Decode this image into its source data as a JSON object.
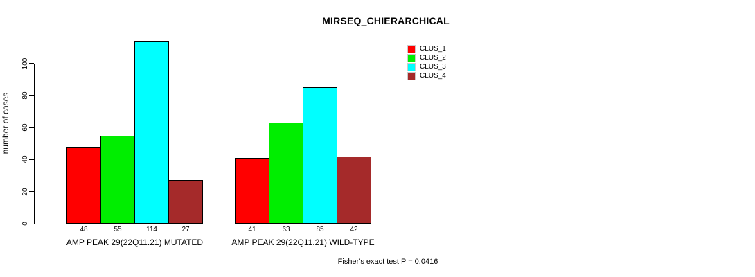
{
  "chart_data": {
    "type": "bar",
    "title": "MIRSEQ_CHIERARCHICAL",
    "xlabel": "",
    "ylabel": "number of cases",
    "categories": [
      "AMP PEAK 29(22Q11.21) MUTATED",
      "AMP PEAK 29(22Q11.21) WILD-TYPE"
    ],
    "series": [
      {
        "name": "CLUS_1",
        "color": "#ff0000",
        "values": [
          48,
          41
        ]
      },
      {
        "name": "CLUS_2",
        "color": "#00ee00",
        "values": [
          55,
          63
        ]
      },
      {
        "name": "CLUS_3",
        "color": "#00ffff",
        "values": [
          114,
          85
        ]
      },
      {
        "name": "CLUS_4",
        "color": "#a52a2a",
        "values": [
          27,
          42
        ]
      }
    ],
    "yticks": [
      0,
      20,
      40,
      60,
      80,
      100
    ],
    "ylim": [
      0,
      114
    ],
    "grid": "off",
    "legend_position": "top-right",
    "bar_value_labels": true,
    "annotation": "Fisher's exact test P = 0.0416"
  },
  "colors": {
    "axis": "#000000",
    "bar_border": "#000000",
    "background": "#ffffff"
  }
}
